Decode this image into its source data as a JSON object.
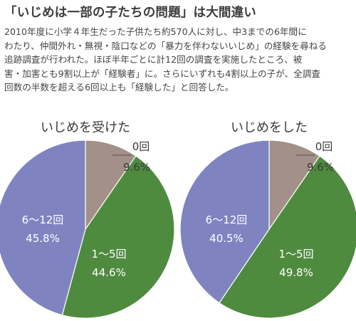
{
  "headline": "「いじめは一部の子たちの問題」は大間違い",
  "body_lines": [
    "2010年度に小学４年生だった子供たち約570人に対し、中3までの6年間に",
    "わたり、仲間外れ・無視・陰口などの「暴力を伴わないいじめ」の経験を尋ねる",
    "追跡調査が行われた。ほぼ半年ごとに計12回の調査を実施したところ、被",
    "害・加害とも9割以上が「経験者」に。さらにいずれも4割以上の子が、全調査",
    "回数の半数を超える6回以上も「経験した」と回答した。"
  ],
  "colors": {
    "zero": "#a29089",
    "one_to_five": "#4f8b3f",
    "six_to_twelve": "#7f84c1"
  },
  "chart_data": [
    {
      "type": "pie",
      "title": "いじめを受けた",
      "slices": [
        {
          "label": "0回",
          "value": 9.6,
          "value_text": "9.6%",
          "color": "#a29089"
        },
        {
          "label": "1〜5回",
          "value": 44.6,
          "value_text": "44.6%",
          "color": "#4f8b3f"
        },
        {
          "label": "6〜12回",
          "value": 45.8,
          "value_text": "45.8%",
          "color": "#7f84c1"
        }
      ]
    },
    {
      "type": "pie",
      "title": "いじめをした",
      "slices": [
        {
          "label": "0回",
          "value": 9.6,
          "value_text": "9.6%",
          "color": "#a29089"
        },
        {
          "label": "1〜5回",
          "value": 49.8,
          "value_text": "49.8%",
          "color": "#4f8b3f"
        },
        {
          "label": "6〜12回",
          "value": 40.5,
          "value_text": "40.5%",
          "color": "#7f84c1"
        }
      ]
    }
  ]
}
